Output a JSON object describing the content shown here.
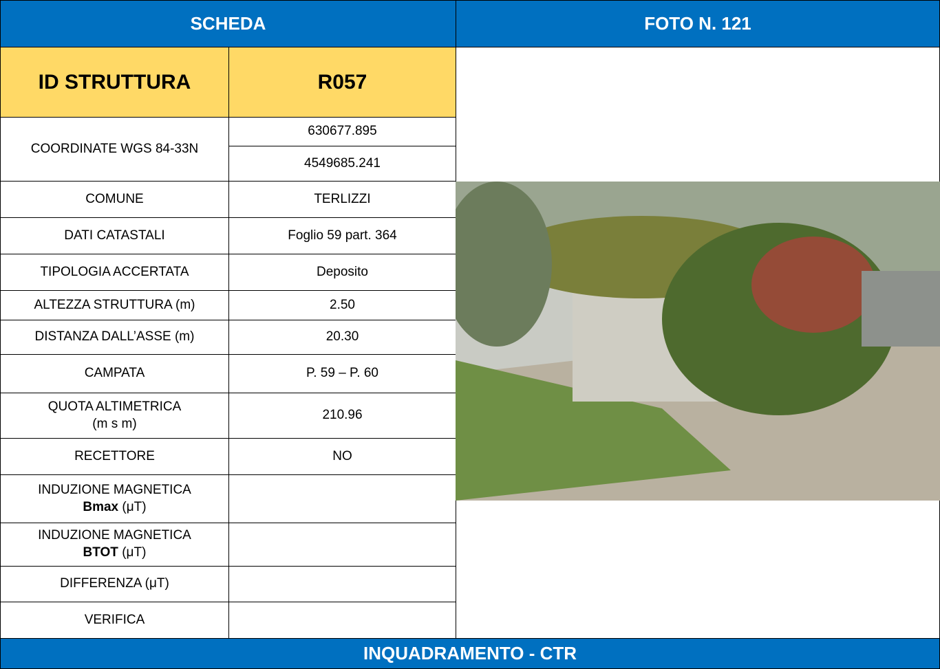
{
  "header": {
    "left": "SCHEDA",
    "right": "FOTO N. 121"
  },
  "id_row": {
    "label": "ID STRUTTURA",
    "value": "R057"
  },
  "coordinates": {
    "label": "COORDINATE WGS 84-33N",
    "values": [
      "630677.895",
      "4549685.241"
    ]
  },
  "rows": [
    {
      "label": "COMUNE",
      "value": "TERLIZZI"
    },
    {
      "label": "DATI CATASTALI",
      "value": "Foglio 59 part. 364"
    },
    {
      "label": "TIPOLOGIA ACCERTATA",
      "value": "Deposito"
    },
    {
      "label": "ALTEZZA STRUTTURA (m)",
      "value": "2.50"
    },
    {
      "label": "DISTANZA DALL’ASSE (m)",
      "value": "20.30"
    },
    {
      "label": "CAMPATA",
      "value": "P. 59 – P. 60"
    },
    {
      "label": "QUOTA ALTIMETRICA",
      "label_line2": "(m s m)",
      "value": "210.96"
    },
    {
      "label": "RECETTORE",
      "value": "NO"
    },
    {
      "label": "INDUZIONE MAGNETICA",
      "label_bold": "Bmax",
      "label_unit": "(μT)"
    },
    {
      "label": "INDUZIONE MAGNETICA",
      "label_bold": "BTOT",
      "label_unit": "(μT)"
    },
    {
      "label": "DIFFERENZA (μT)"
    },
    {
      "label": "VERIFICA"
    }
  ],
  "footer": "INQUADRAMENTO - CTR"
}
